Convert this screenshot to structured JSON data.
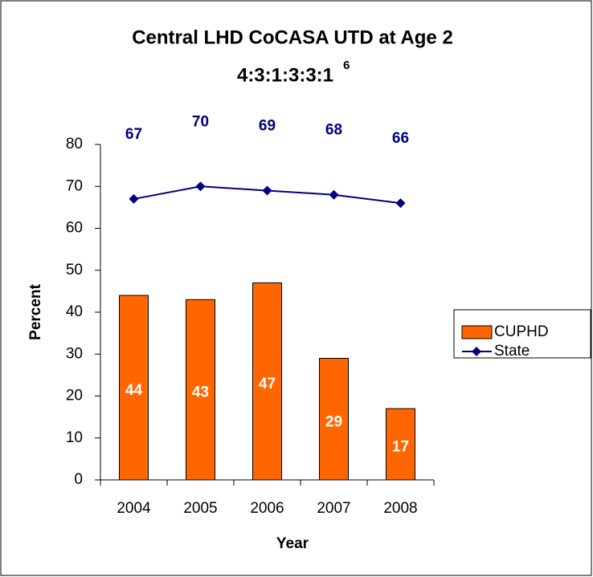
{
  "chart_data": {
    "type": "bar_line",
    "title": "Central LHD CoCASA UTD at Age 2",
    "subtitle": "4:3:1:3:3:1",
    "subtitle_superscript": "6",
    "x_label": "Year",
    "y_label": "Percent",
    "categories": [
      "2004",
      "2005",
      "2006",
      "2007",
      "2008"
    ],
    "series": [
      {
        "name": "CUPHD",
        "type": "bar",
        "color": "#ff6600",
        "values": [
          44,
          43,
          47,
          29,
          17
        ]
      },
      {
        "name": "State",
        "type": "line",
        "color": "#000080",
        "values": [
          67,
          70,
          69,
          68,
          66
        ]
      }
    ],
    "ylim": [
      0,
      80
    ],
    "yticks": [
      0,
      10,
      20,
      30,
      40,
      50,
      60,
      70,
      80
    ],
    "legend": "right"
  }
}
